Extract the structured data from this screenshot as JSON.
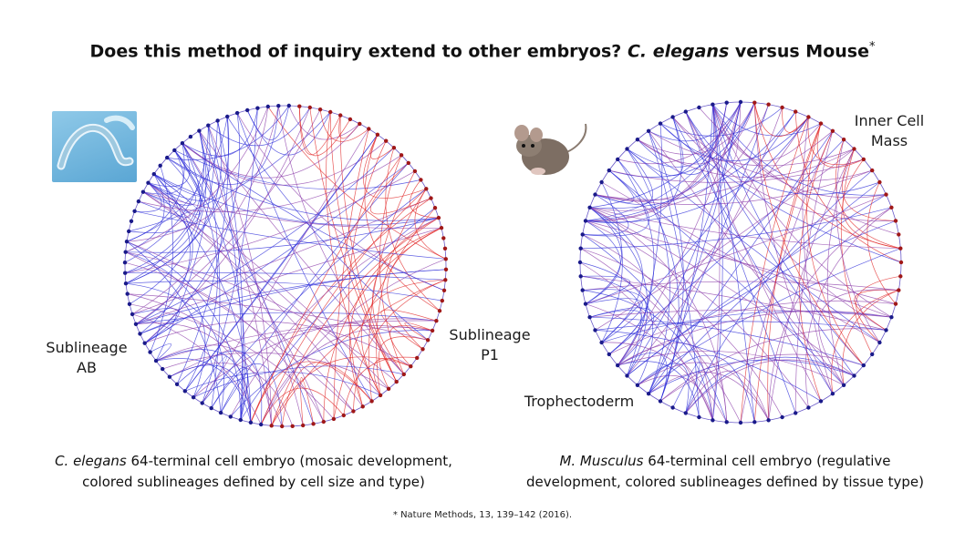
{
  "title": {
    "prefix": "Does this method of inquiry extend to other embryos? ",
    "italic": "C. elegans",
    "suffix": " versus Mouse",
    "sup": "*"
  },
  "left": {
    "label_left": [
      "Sublineage",
      "AB"
    ],
    "label_right": [
      "Sublineage",
      "P1"
    ],
    "caption_italic": "C. elegans",
    "caption_line1": " 64-terminal cell embryo (mosaic development,",
    "caption_line2": "colored sublineages defined by cell size and type)"
  },
  "right": {
    "label_top": [
      "Inner Cell",
      "Mass"
    ],
    "label_bottom": "Trophectoderm",
    "caption_italic": "M. Musculus",
    "caption_line1": " 64-terminal cell embryo (regulative",
    "caption_line2": "development, colored sublineages defined by tissue type)"
  },
  "footnote": "* Nature Methods, 13, 139–142 (2016).",
  "colors": {
    "blue": "#2a2ad8",
    "red": "#e02020",
    "purple": "#8a3aa8"
  }
}
